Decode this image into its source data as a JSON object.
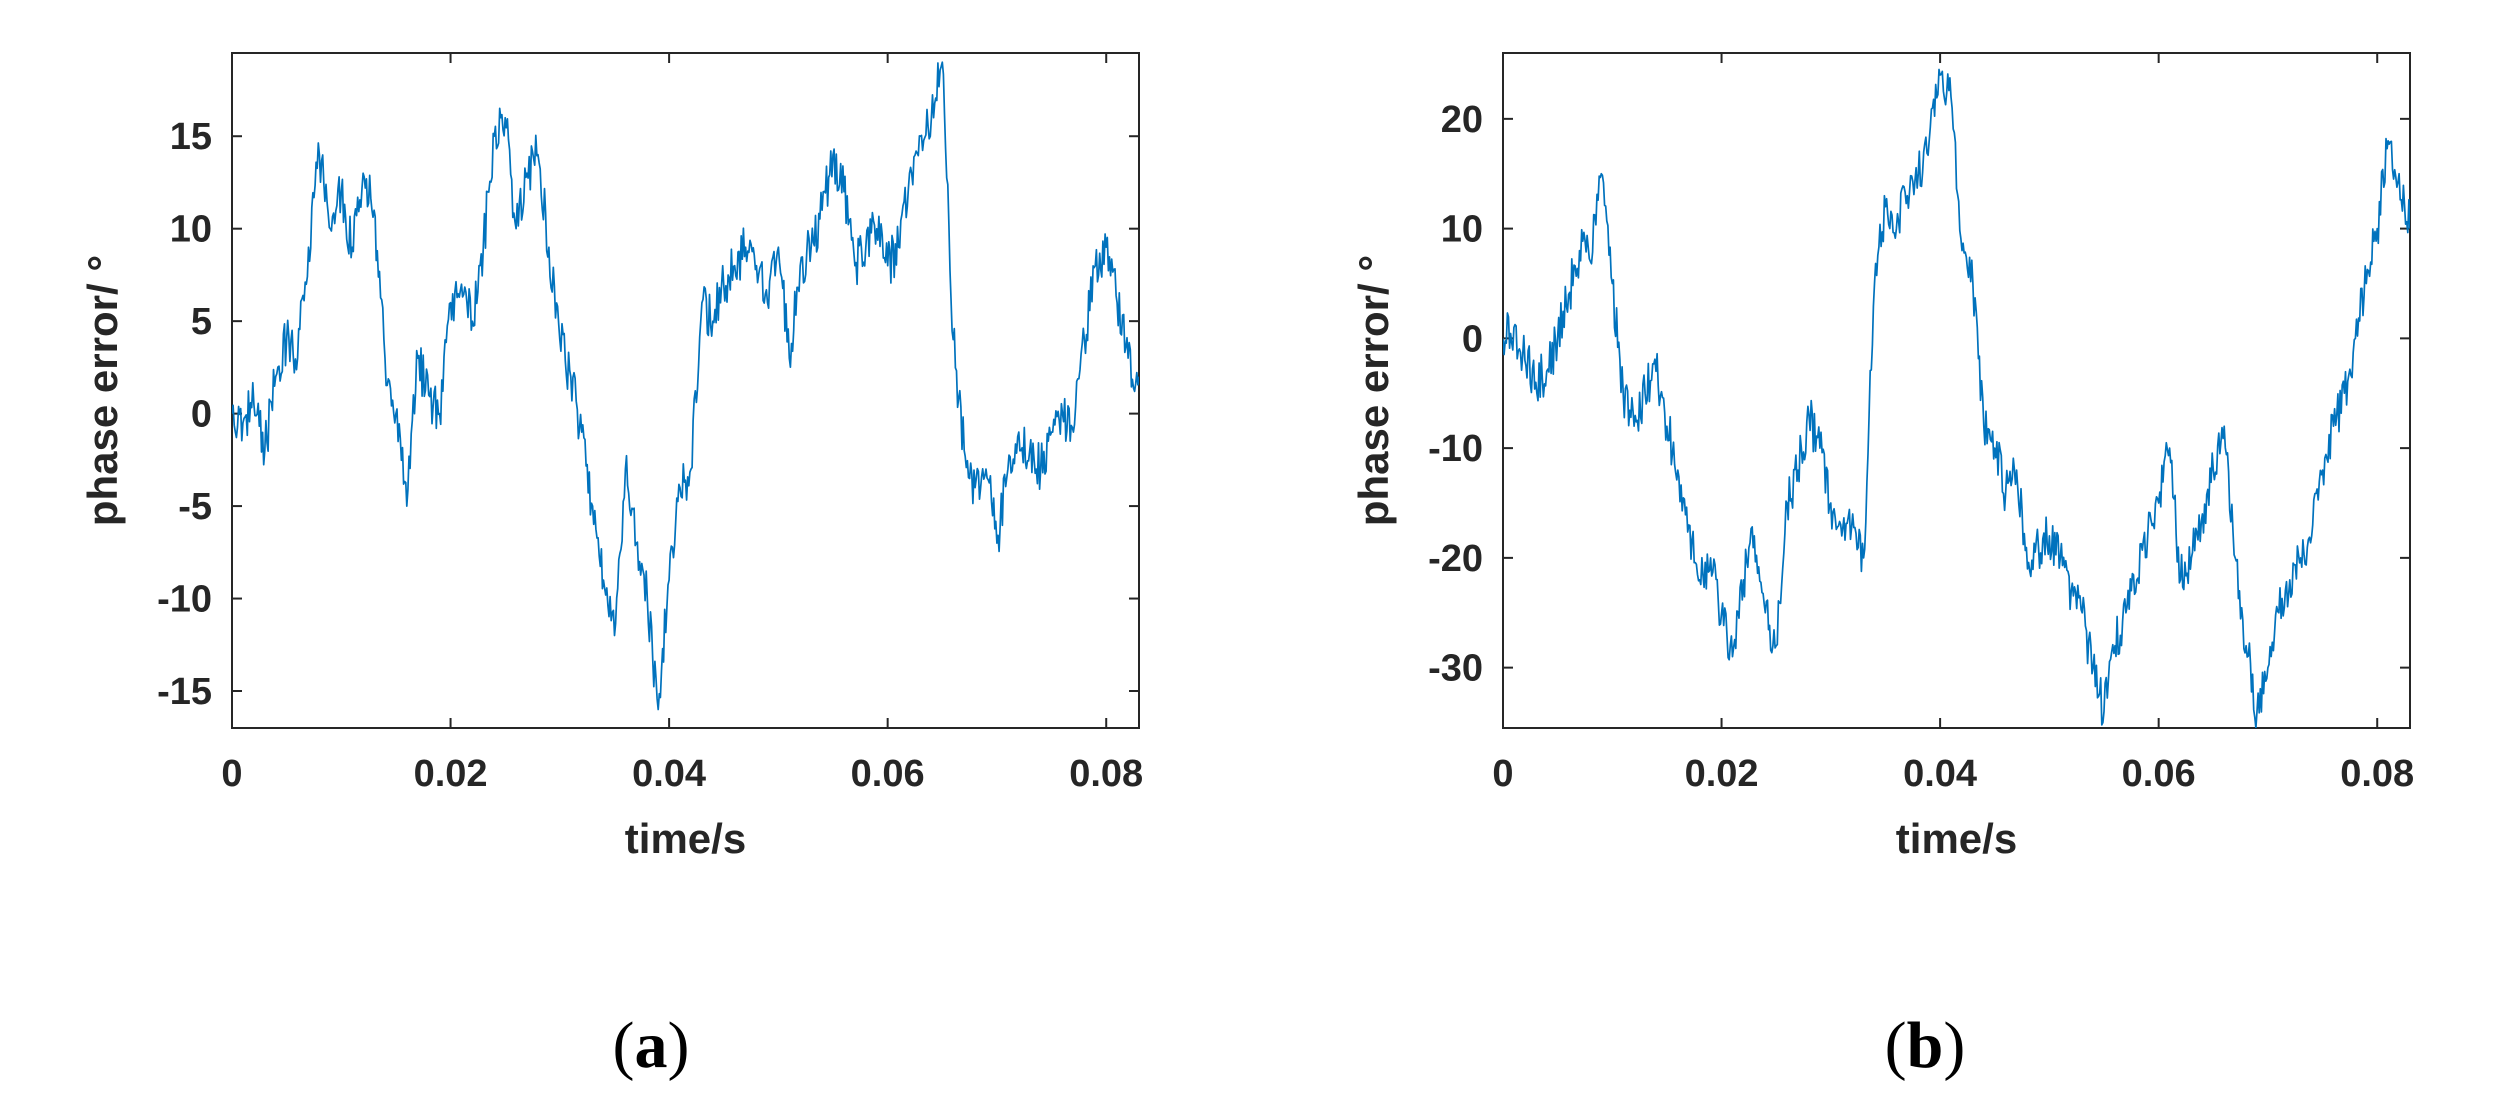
{
  "colors": {
    "series": "#0072bd",
    "axis": "#262626"
  },
  "chart_data": [
    {
      "type": "line",
      "panel_label": "a",
      "xlabel": "time/s",
      "ylabel": "phase error/ °",
      "xlim": [
        0,
        0.083
      ],
      "ylim": [
        -17,
        19.5
      ],
      "xticks": [
        0,
        0.02,
        0.04,
        0.06,
        0.08
      ],
      "xtick_labels": [
        "0",
        "0.02",
        "0.04",
        "0.06",
        "0.08"
      ],
      "yticks": [
        15,
        10,
        5,
        0,
        -5,
        -10,
        -15
      ],
      "ytick_labels": [
        "15",
        "10",
        "5",
        "0",
        "-5",
        "-10",
        "-15"
      ],
      "grid": false,
      "series": [
        {
          "color": "#0072bd",
          "x": [
            0,
            0.001,
            0.002,
            0.003,
            0.004,
            0.005,
            0.006,
            0.007,
            0.008,
            0.009,
            0.01,
            0.011,
            0.012,
            0.013,
            0.014,
            0.015,
            0.016,
            0.017,
            0.018,
            0.019,
            0.02,
            0.021,
            0.022,
            0.023,
            0.024,
            0.025,
            0.026,
            0.027,
            0.028,
            0.029,
            0.03,
            0.031,
            0.032,
            0.033,
            0.034,
            0.035,
            0.036,
            0.037,
            0.038,
            0.039,
            0.04,
            0.041,
            0.042,
            0.043,
            0.044,
            0.045,
            0.046,
            0.047,
            0.048,
            0.049,
            0.05,
            0.051,
            0.052,
            0.053,
            0.054,
            0.055,
            0.056,
            0.057,
            0.058,
            0.059,
            0.06,
            0.061,
            0.062,
            0.063,
            0.064,
            0.065,
            0.066,
            0.067,
            0.068,
            0.069,
            0.07,
            0.071,
            0.072,
            0.073,
            0.074,
            0.075,
            0.076,
            0.077,
            0.078,
            0.079,
            0.08,
            0.081,
            0.082,
            0.083
          ],
          "y": [
            0,
            -0.5,
            0.5,
            -2,
            2,
            4,
            3,
            9,
            14,
            10,
            12,
            9,
            13,
            11,
            3,
            0,
            -5,
            3,
            1,
            0,
            6,
            7,
            5,
            9,
            15,
            16,
            10,
            13,
            14,
            9,
            4,
            2,
            -1,
            -5,
            -9,
            -12,
            -3,
            -7,
            -10,
            -16,
            -9,
            -4,
            -3,
            6,
            5,
            7,
            8,
            9,
            8,
            6,
            9,
            3,
            8,
            9,
            11,
            14,
            12,
            8,
            9,
            10,
            8,
            9,
            13,
            15,
            16,
            19,
            4,
            -2,
            -4,
            -3,
            -7,
            -3,
            -1,
            -2,
            -3,
            -1,
            0,
            -1,
            4,
            8,
            9,
            6,
            3,
            2
          ]
        }
      ]
    },
    {
      "type": "line",
      "panel_label": "b",
      "xlabel": "time/s",
      "ylabel": "phase error/ °",
      "xlim": [
        0,
        0.083
      ],
      "ylim": [
        -35.5,
        26
      ],
      "xticks": [
        0,
        0.02,
        0.04,
        0.06,
        0.08
      ],
      "xtick_labels": [
        "0",
        "0.02",
        "0.04",
        "0.06",
        "0.08"
      ],
      "yticks": [
        20,
        10,
        0,
        -10,
        -20,
        -30
      ],
      "ytick_labels": [
        "20",
        "10",
        "0",
        "-10",
        "-20",
        "-30"
      ],
      "grid": false,
      "series": [
        {
          "color": "#0072bd",
          "x": [
            0,
            0.001,
            0.002,
            0.003,
            0.004,
            0.005,
            0.006,
            0.007,
            0.008,
            0.009,
            0.01,
            0.011,
            0.012,
            0.013,
            0.014,
            0.015,
            0.016,
            0.017,
            0.018,
            0.019,
            0.02,
            0.021,
            0.022,
            0.023,
            0.024,
            0.025,
            0.026,
            0.027,
            0.028,
            0.029,
            0.03,
            0.031,
            0.032,
            0.033,
            0.034,
            0.035,
            0.036,
            0.037,
            0.038,
            0.039,
            0.04,
            0.041,
            0.042,
            0.043,
            0.044,
            0.045,
            0.046,
            0.047,
            0.048,
            0.049,
            0.05,
            0.051,
            0.052,
            0.053,
            0.054,
            0.055,
            0.056,
            0.057,
            0.058,
            0.059,
            0.06,
            0.061,
            0.062,
            0.063,
            0.064,
            0.065,
            0.066,
            0.067,
            0.068,
            0.069,
            0.07,
            0.071,
            0.072,
            0.073,
            0.074,
            0.075,
            0.076,
            0.077,
            0.078,
            0.079,
            0.08,
            0.081,
            0.082,
            0.083
          ],
          "y": [
            0,
            1,
            -2,
            -4,
            -3,
            0,
            4,
            8,
            7,
            15,
            5,
            -5,
            -8,
            -5,
            -3,
            -8,
            -12,
            -17,
            -22,
            -20,
            -25,
            -29,
            -22,
            -18,
            -25,
            -28,
            -15,
            -12,
            -7,
            -10,
            -15,
            -18,
            -16,
            -20,
            5,
            12,
            10,
            13,
            15,
            18,
            24,
            22,
            8,
            5,
            -8,
            -10,
            -14,
            -12,
            -21,
            -19,
            -18,
            -20,
            -23,
            -25,
            -30,
            -34,
            -28,
            -25,
            -22,
            -18,
            -15,
            -10,
            -22,
            -20,
            -16,
            -12,
            -8,
            -20,
            -28,
            -34,
            -30,
            -25,
            -22,
            -20,
            -18,
            -12,
            -8,
            -5,
            0,
            5,
            10,
            18,
            15,
            10
          ]
        }
      ]
    }
  ]
}
